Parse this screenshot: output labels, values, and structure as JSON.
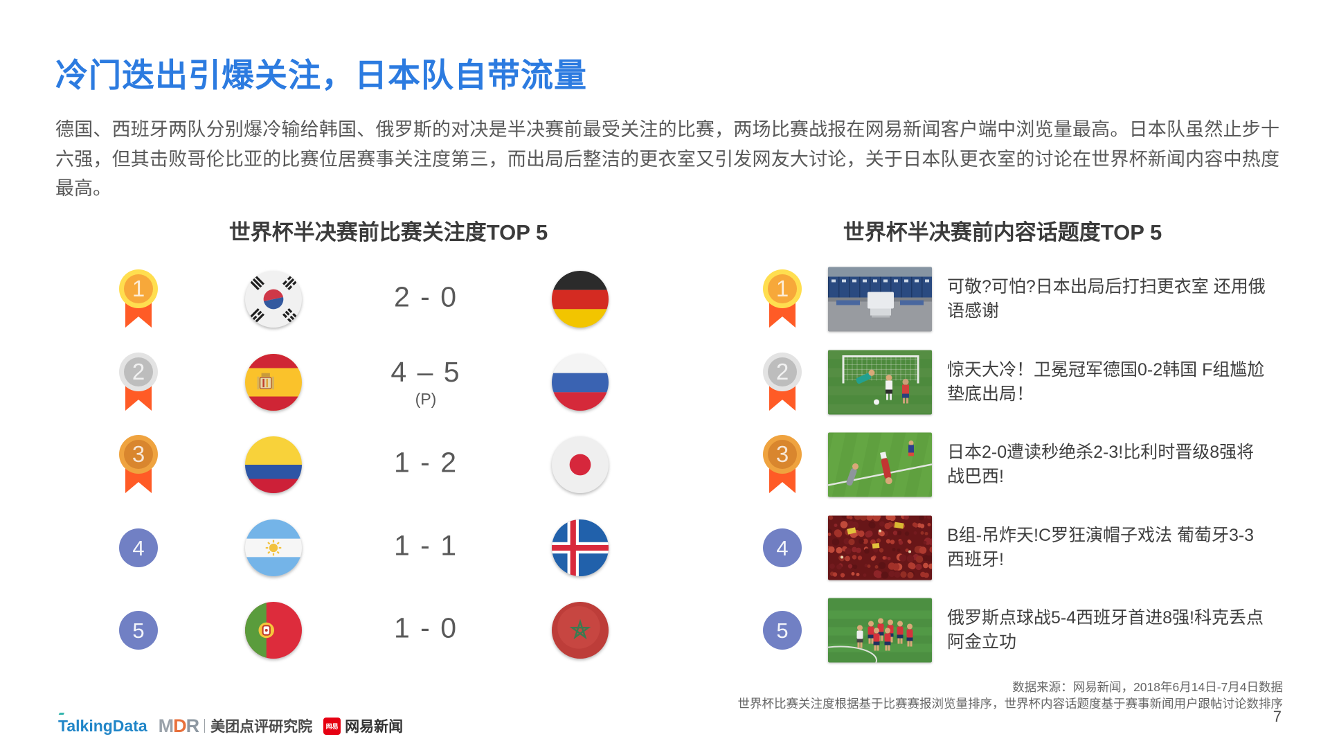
{
  "page": {
    "title": "冷门迭出引爆关注，日本队自带流量",
    "body": "德国、西班牙两队分别爆冷输给韩国、俄罗斯的对决是半决赛前最受关注的比赛，两场比赛战报在网易新闻客户端中浏览量最高。日本队虽然止步十六强，但其击败哥伦比亚的比赛位居赛事关注度第三，而出局后整洁的更衣室又引发网友大讨论，关于日本队更衣室的讨论在世界杯新闻内容中热度最高。",
    "page_number": "7"
  },
  "match_ranking": {
    "title": "世界杯半决赛前比赛关注度TOP 5",
    "rows": [
      {
        "rank": "1",
        "medal": "gold",
        "home_team": "South Korea",
        "home_flag": "flag-south-korea",
        "score": "2 - 0",
        "away_team": "Germany",
        "away_flag": "flag-germany"
      },
      {
        "rank": "2",
        "medal": "silver",
        "home_team": "Spain",
        "home_flag": "flag-spain",
        "score": "4 – 5",
        "score_note": "(P)",
        "away_team": "Russia",
        "away_flag": "flag-russia"
      },
      {
        "rank": "3",
        "medal": "bronze",
        "home_team": "Colombia",
        "home_flag": "flag-colombia",
        "score": "1 - 2",
        "away_team": "Japan",
        "away_flag": "flag-japan"
      },
      {
        "rank": "4",
        "medal": "blue",
        "home_team": "Argentina",
        "home_flag": "flag-argentina",
        "score": "1 - 1",
        "away_team": "Iceland",
        "away_flag": "flag-iceland"
      },
      {
        "rank": "5",
        "medal": "blue",
        "home_team": "Portugal",
        "home_flag": "flag-portugal",
        "score": "1 - 0",
        "away_team": "Morocco",
        "away_flag": "flag-morocco"
      }
    ]
  },
  "topic_ranking": {
    "title": "世界杯半决赛前内容话题度TOP 5",
    "rows": [
      {
        "rank": "1",
        "medal": "gold",
        "thumbnail": "locker-room-photo",
        "headline": "可敬?可怕?日本出局后打扫更衣室 还用俄语感谢"
      },
      {
        "rank": "2",
        "medal": "silver",
        "thumbnail": "germany-korea-match-photo",
        "headline": "惊天大冷！卫冕冠军德国0-2韩国 F组尴尬垫底出局！"
      },
      {
        "rank": "3",
        "medal": "bronze",
        "thumbnail": "japan-belgium-match-photo",
        "headline": "日本2-0遭读秒绝杀2-3!比利时晋级8强将战巴西!"
      },
      {
        "rank": "4",
        "medal": "blue",
        "thumbnail": "portugal-spain-fans-photo",
        "headline": "B组-吊炸天!C罗狂演帽子戏法 葡萄牙3-3西班牙!"
      },
      {
        "rank": "5",
        "medal": "blue",
        "thumbnail": "russia-spain-match-photo",
        "headline": "俄罗斯点球战5-4西班牙首进8强!科克丢点阿金立功"
      }
    ]
  },
  "footer": {
    "source_line1": "数据来源：网易新闻，2018年6月14日-7月4日数据",
    "source_line2": "世界杯比赛关注度根据基于比赛赛报浏览量排序，世界杯内容话题度基于赛事新闻用户跟帖讨论数排序",
    "logos": {
      "talkingdata": "TalkingData",
      "mdr": "MDR",
      "meituan": "美团点评研究院",
      "netease_badge": "网易",
      "netease": "网易新闻"
    }
  },
  "colors": {
    "title_blue": "#2C7BE0",
    "rank_badge_blue": "#7180C4",
    "medal_gold_outer": "#FFDE4F",
    "medal_gold_inner": "#F7A83A",
    "medal_silver_outer": "#E3E3E3",
    "medal_silver_inner": "#BDBDBD",
    "medal_bronze_outer": "#EFA33F",
    "medal_bronze_inner": "#D9862E",
    "ribbon_orange": "#FF5B26",
    "netease_red": "#E60012",
    "talkingdata_blue": "#2186C8"
  }
}
